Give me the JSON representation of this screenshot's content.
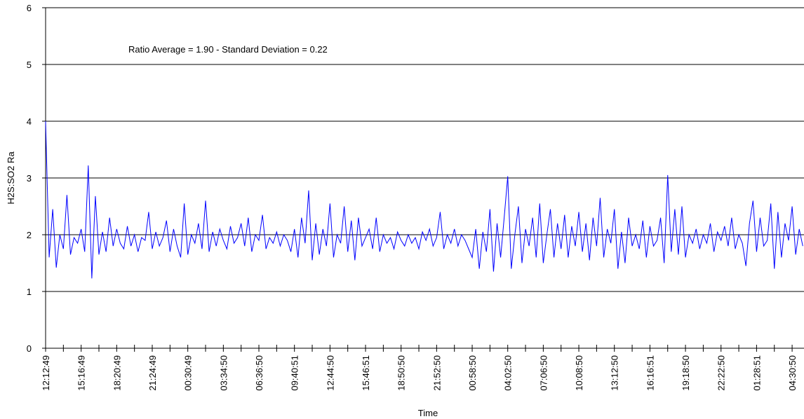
{
  "chart_data": {
    "type": "line",
    "x_label": "Time",
    "y_label": "H2S:SO2 Ra",
    "annotation": "Ratio Average = 1.90 - Standard Deviation = 0.22",
    "ylim": [
      0,
      6
    ],
    "yticks": [
      0,
      1,
      2,
      3,
      4,
      5,
      6
    ],
    "grid": true,
    "categories": [
      "12:12:49",
      null,
      null,
      null,
      null,
      null,
      null,
      null,
      null,
      null,
      "15:16:49",
      null,
      null,
      null,
      null,
      null,
      null,
      null,
      null,
      null,
      "18:20:49",
      null,
      null,
      null,
      null,
      null,
      null,
      null,
      null,
      null,
      "21:24:49",
      null,
      null,
      null,
      null,
      null,
      null,
      null,
      null,
      null,
      "00:30:49",
      null,
      null,
      null,
      null,
      null,
      null,
      null,
      null,
      null,
      "03:34:50",
      null,
      null,
      null,
      null,
      null,
      null,
      null,
      null,
      null,
      "06:36:50",
      null,
      null,
      null,
      null,
      null,
      null,
      null,
      null,
      null,
      "09:40:51",
      null,
      null,
      null,
      null,
      null,
      null,
      null,
      null,
      null,
      "12:44:50",
      null,
      null,
      null,
      null,
      null,
      null,
      null,
      null,
      null,
      "15:46:51",
      null,
      null,
      null,
      null,
      null,
      null,
      null,
      null,
      null,
      "18:50:50",
      null,
      null,
      null,
      null,
      null,
      null,
      null,
      null,
      null,
      "21:52:50",
      null,
      null,
      null,
      null,
      null,
      null,
      null,
      null,
      null,
      "00:58:50",
      null,
      null,
      null,
      null,
      null,
      null,
      null,
      null,
      null,
      "04:02:50",
      null,
      null,
      null,
      null,
      null,
      null,
      null,
      null,
      null,
      "07:06:50",
      null,
      null,
      null,
      null,
      null,
      null,
      null,
      null,
      null,
      "10:08:50",
      null,
      null,
      null,
      null,
      null,
      null,
      null,
      null,
      null,
      "13:12:50",
      null,
      null,
      null,
      null,
      null,
      null,
      null,
      null,
      null,
      "16:16:51",
      null,
      null,
      null,
      null,
      null,
      null,
      null,
      null,
      null,
      "19:18:50",
      null,
      null,
      null,
      null,
      null,
      null,
      null,
      null,
      null,
      "22:22:50",
      null,
      null,
      null,
      null,
      null,
      null,
      null,
      null,
      null,
      "01:28:51",
      null,
      null,
      null,
      null,
      null,
      null,
      null,
      null,
      null,
      "04:30:50",
      null,
      null,
      null
    ],
    "series": [
      {
        "color": "#0000ff",
        "values": [
          4.0,
          1.6,
          2.45,
          1.42,
          2.0,
          1.75,
          2.7,
          1.65,
          1.95,
          1.85,
          2.1,
          1.7,
          3.22,
          1.23,
          2.68,
          1.65,
          2.05,
          1.7,
          2.3,
          1.8,
          2.1,
          1.85,
          1.75,
          2.15,
          1.8,
          2.0,
          1.7,
          1.95,
          1.9,
          2.4,
          1.75,
          2.05,
          1.8,
          1.95,
          2.25,
          1.7,
          2.1,
          1.8,
          1.6,
          2.55,
          1.65,
          2.0,
          1.85,
          2.2,
          1.75,
          2.6,
          1.7,
          2.05,
          1.8,
          2.1,
          1.9,
          1.75,
          2.15,
          1.85,
          1.95,
          2.2,
          1.8,
          2.3,
          1.7,
          2.0,
          1.9,
          2.35,
          1.75,
          1.95,
          1.85,
          2.05,
          1.8,
          2.0,
          1.9,
          1.7,
          2.1,
          1.6,
          2.3,
          1.85,
          2.78,
          1.55,
          2.2,
          1.65,
          2.1,
          1.8,
          2.55,
          1.6,
          2.0,
          1.85,
          2.5,
          1.7,
          2.25,
          1.55,
          2.3,
          1.8,
          1.95,
          2.1,
          1.75,
          2.3,
          1.7,
          2.0,
          1.85,
          1.95,
          1.75,
          2.05,
          1.9,
          1.8,
          2.0,
          1.85,
          1.95,
          1.75,
          2.05,
          1.9,
          2.1,
          1.8,
          1.95,
          2.4,
          1.75,
          2.0,
          1.85,
          2.1,
          1.8,
          2.0,
          1.9,
          1.75,
          1.6,
          2.1,
          1.4,
          2.05,
          1.7,
          2.45,
          1.35,
          2.2,
          1.6,
          2.3,
          3.03,
          1.4,
          2.0,
          2.5,
          1.5,
          2.1,
          1.8,
          2.3,
          1.6,
          2.55,
          1.5,
          2.0,
          2.45,
          1.6,
          2.2,
          1.75,
          2.35,
          1.6,
          2.15,
          1.8,
          2.4,
          1.7,
          2.2,
          1.55,
          2.3,
          1.8,
          2.65,
          1.6,
          2.1,
          1.85,
          2.45,
          1.4,
          2.05,
          1.5,
          2.3,
          1.8,
          2.0,
          1.75,
          2.25,
          1.6,
          2.15,
          1.8,
          1.9,
          2.3,
          1.5,
          3.05,
          1.7,
          2.45,
          1.65,
          2.5,
          1.6,
          2.0,
          1.85,
          2.1,
          1.75,
          2.0,
          1.85,
          2.2,
          1.7,
          2.05,
          1.9,
          2.15,
          1.8,
          2.3,
          1.75,
          2.0,
          1.85,
          1.45,
          2.2,
          2.6,
          1.7,
          2.3,
          1.8,
          1.9,
          2.55,
          1.4,
          2.4,
          1.6,
          2.2,
          1.9,
          2.5,
          1.65,
          2.1,
          1.8
        ]
      }
    ]
  }
}
